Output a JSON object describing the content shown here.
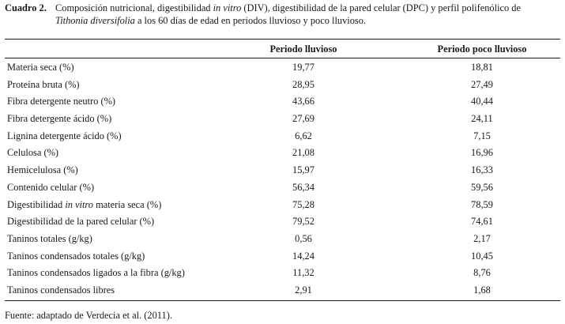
{
  "caption": {
    "label": "Cuadro 2.",
    "text_a": "Composición nutricional, digestibilidad ",
    "text_b_italic": "in vitro",
    "text_c": " (DIV), digestibilidad de la pared celular (DPC) y perfil polifenólico de",
    "text_d_italic": "Tithonia diversifolia",
    "text_e": " a los 60 días de edad en periodos lluvioso y poco lluvioso."
  },
  "table": {
    "headers": [
      "",
      "Periodo lluvioso",
      "Periodo poco lluvioso"
    ],
    "rows": [
      {
        "label": "Materia seca (%)",
        "v1": "19,77",
        "v2": "18,81"
      },
      {
        "label": "Proteína bruta (%)",
        "v1": "28,95",
        "v2": "27,49"
      },
      {
        "label": "Fibra detergente neutro (%)",
        "v1": "43,66",
        "v2": "40,44"
      },
      {
        "label": "Fibra detergente ácido (%)",
        "v1": "27,69",
        "v2": "24,11"
      },
      {
        "label": "Lignina detergente ácido (%)",
        "v1": "6,62",
        "v2": "7,15"
      },
      {
        "label": "Celulosa (%)",
        "v1": "21,08",
        "v2": "16,96"
      },
      {
        "label": "Hemicelulosa (%)",
        "v1": "15,97",
        "v2": "16,33"
      },
      {
        "label": "Contenido celular (%)",
        "v1": "56,34",
        "v2": "59,56"
      },
      {
        "label_a": "Digestibilidad ",
        "label_b_italic": "in vitro",
        "label_c": " materia seca (%)",
        "v1": "75,28",
        "v2": "78,59"
      },
      {
        "label": "Digestibilidad de la pared celular (%)",
        "v1": "79,52",
        "v2": "74,61"
      },
      {
        "label": "Taninos totales (g/kg)",
        "v1": "0,56",
        "v2": "2,17"
      },
      {
        "label": "Taninos condensados totales (g/kg)",
        "v1": "14,24",
        "v2": "10,45"
      },
      {
        "label": "Taninos condensados ligados a la fibra (g/kg)",
        "v1": "11,32",
        "v2": "8,76"
      },
      {
        "label": "Taninos condensados libres",
        "v1": "2,91",
        "v2": "1,68"
      }
    ]
  },
  "footnote": "Fuente: adaptado de Verdecia et al. (2011)."
}
